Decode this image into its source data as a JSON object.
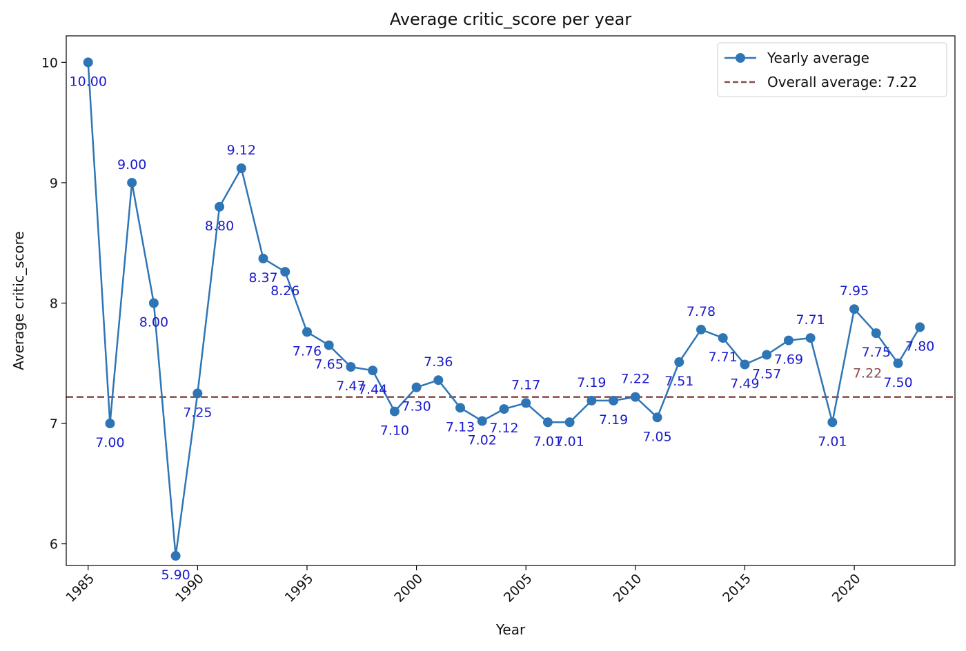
{
  "chart_data": {
    "type": "line",
    "title": "Average critic_score per year",
    "xlabel": "Year",
    "ylabel": "Average critic_score",
    "xlim": [
      1984.0,
      2024.6
    ],
    "ylim": [
      5.82,
      10.22
    ],
    "x_ticks": [
      1985,
      1990,
      1995,
      2000,
      2005,
      2010,
      2015,
      2020
    ],
    "y_ticks": [
      6,
      7,
      8,
      9,
      10
    ],
    "grid": false,
    "legend_position": "top-right",
    "colors": {
      "series": "#2e75b6",
      "average": "#8b4a4a",
      "point_label": "#1a1acd",
      "axis": "#000000"
    },
    "series": [
      {
        "name": "Yearly average",
        "x": [
          1985,
          1986,
          1987,
          1988,
          1989,
          1990,
          1991,
          1992,
          1993,
          1994,
          1995,
          1996,
          1997,
          1998,
          1999,
          2000,
          2001,
          2002,
          2003,
          2004,
          2005,
          2006,
          2007,
          2008,
          2009,
          2010,
          2011,
          2012,
          2013,
          2014,
          2015,
          2016,
          2017,
          2018,
          2019,
          2020,
          2021,
          2022,
          2023
        ],
        "values": [
          10.0,
          7.0,
          9.0,
          8.0,
          5.9,
          7.25,
          8.8,
          9.12,
          8.37,
          8.26,
          7.76,
          7.65,
          7.47,
          7.44,
          7.1,
          7.3,
          7.36,
          7.13,
          7.02,
          7.12,
          7.17,
          7.01,
          7.01,
          7.19,
          7.19,
          7.22,
          7.05,
          7.51,
          7.78,
          7.71,
          7.49,
          7.57,
          7.69,
          7.71,
          7.01,
          7.95,
          7.75,
          7.5,
          7.8
        ],
        "labels": [
          "10.00",
          "7.00",
          "9.00",
          "8.00",
          "5.90",
          "7.25",
          "8.80",
          "9.12",
          "8.37",
          "8.26",
          "7.76",
          "7.65",
          "7.47",
          "7.44",
          "7.10",
          "7.30",
          "7.36",
          "7.13",
          "7.02",
          "7.12",
          "7.17",
          "7.01",
          "7.01",
          "7.19",
          "7.19",
          "7.22",
          "7.05",
          "7.51",
          "7.78",
          "7.71",
          "7.49",
          "7.57",
          "7.69",
          "7.71",
          "7.01",
          "7.95",
          "7.75",
          "7.50",
          "7.80"
        ]
      }
    ],
    "average": {
      "name": "Overall average: 7.22",
      "value": 7.22,
      "label": "7.22"
    }
  }
}
